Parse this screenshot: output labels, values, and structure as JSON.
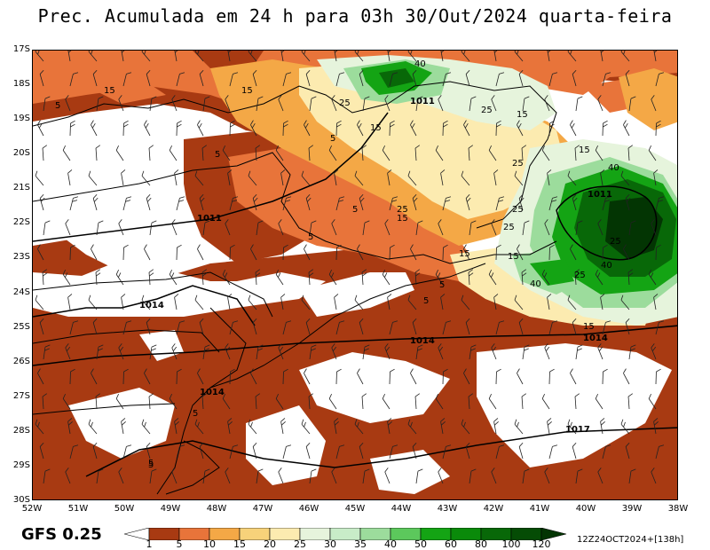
{
  "title": "Prec. Acumulada em 24 h para 03h 30/Out/2024 quarta-feira",
  "model": "GFS 0.25",
  "run_info": "12Z24OCT2024+[138h]",
  "axes": {
    "lat_labels": [
      "17S",
      "18S",
      "19S",
      "20S",
      "21S",
      "22S",
      "23S",
      "24S",
      "25S",
      "26S",
      "27S",
      "28S",
      "29S",
      "30S"
    ],
    "lon_labels": [
      "52W",
      "51W",
      "50W",
      "49W",
      "48W",
      "47W",
      "46W",
      "45W",
      "44W",
      "43W",
      "42W",
      "41W",
      "40W",
      "39W",
      "38W"
    ]
  },
  "colorbar": {
    "ticks": [
      "1",
      "5",
      "10",
      "15",
      "20",
      "25",
      "30",
      "35",
      "40",
      "50",
      "60",
      "80",
      "100",
      "120"
    ],
    "colors": [
      "#ffffff",
      "#a83a12",
      "#e8743a",
      "#f4a846",
      "#f7d27a",
      "#fcebb0",
      "#e6f4dc",
      "#c8ecc8",
      "#9cdc9c",
      "#5cc85c",
      "#14a414",
      "#0a8a0a",
      "#086808",
      "#054c05",
      "#033503"
    ]
  },
  "contour_labels": [
    "40",
    "1011",
    "15",
    "15",
    "5",
    "25",
    "15",
    "25",
    "15",
    "5",
    "5",
    "25",
    "40",
    "1011",
    "25",
    "15",
    "5",
    "25",
    "15",
    "5",
    "15",
    "25",
    "40",
    "5",
    "1011",
    "25",
    "15",
    "5",
    "40",
    "25",
    "1014",
    "15",
    "1014",
    "5",
    "1014",
    "5",
    "1014",
    "5",
    "1017"
  ]
}
